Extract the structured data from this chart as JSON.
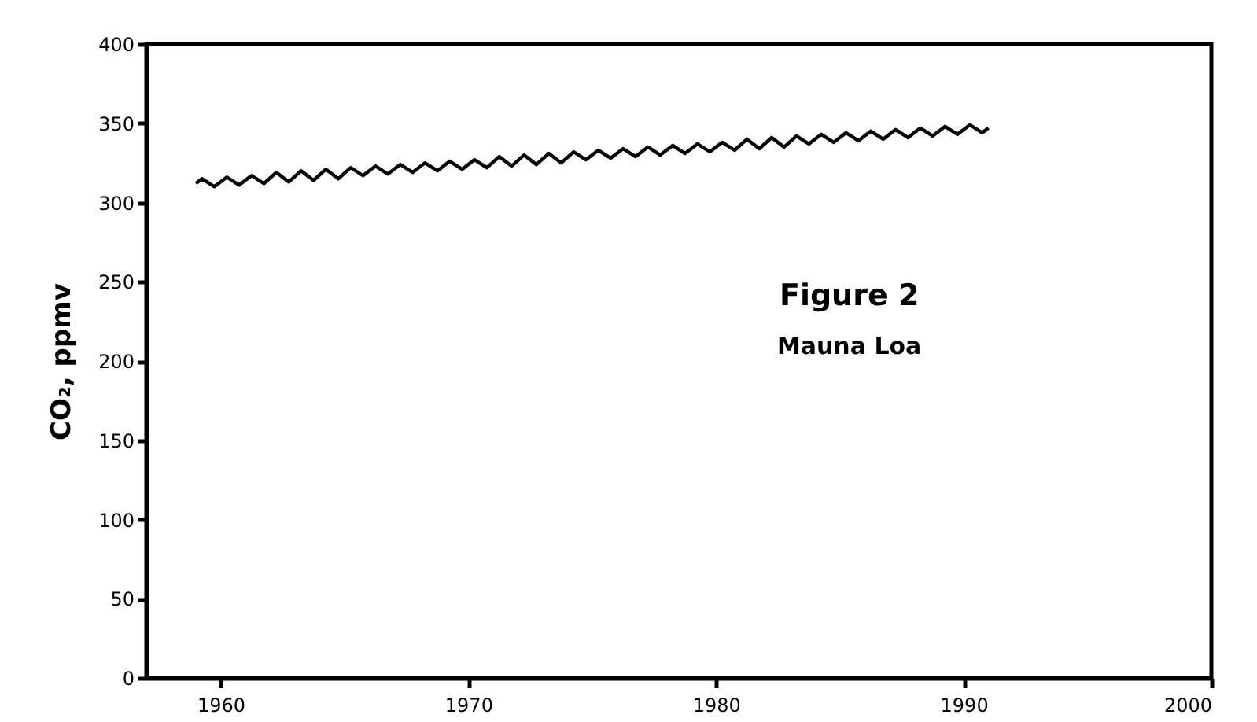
{
  "chart_data": {
    "type": "line",
    "annotations": [
      "Figure 2",
      "Mauna Loa"
    ],
    "ylabel": "CO₂, ppmv",
    "x": [
      1959.0,
      1959.25,
      1959.75,
      1960.25,
      1960.75,
      1961.25,
      1961.75,
      1962.25,
      1962.75,
      1963.25,
      1963.75,
      1964.25,
      1964.75,
      1965.25,
      1965.75,
      1966.25,
      1966.75,
      1967.25,
      1967.75,
      1968.25,
      1968.75,
      1969.25,
      1969.75,
      1970.25,
      1970.75,
      1971.25,
      1971.75,
      1972.25,
      1972.75,
      1973.25,
      1973.75,
      1974.25,
      1974.75,
      1975.25,
      1975.75,
      1976.25,
      1976.75,
      1977.25,
      1977.75,
      1978.25,
      1978.75,
      1979.25,
      1979.75,
      1980.25,
      1980.75,
      1981.25,
      1981.75,
      1982.25,
      1982.75,
      1983.25,
      1983.75,
      1984.25,
      1984.75,
      1985.25,
      1985.75,
      1986.25,
      1986.75,
      1987.25,
      1987.75,
      1988.25,
      1988.75,
      1989.25,
      1989.75,
      1990.25,
      1990.75,
      1991.0
    ],
    "series": [
      {
        "color": "#000000",
        "values": [
          312,
          315,
          310,
          316,
          311,
          317,
          312,
          319,
          313,
          320,
          314,
          321,
          315,
          322,
          317,
          323,
          318,
          324,
          319,
          325,
          320,
          326,
          321,
          327,
          322,
          329,
          323,
          330,
          324,
          331,
          325,
          332,
          327,
          333,
          328,
          334,
          329,
          335,
          330,
          336,
          331,
          337,
          332,
          338,
          333,
          340,
          334,
          341,
          335,
          342,
          337,
          343,
          338,
          344,
          339,
          345,
          340,
          346,
          341,
          347,
          342,
          348,
          343,
          349,
          344,
          347
        ]
      }
    ],
    "xlim": [
      1957,
      2000
    ],
    "xticks": [
      1960,
      1970,
      1980,
      1990,
      2000
    ],
    "ylim": [
      0,
      400
    ],
    "yticks": [
      0,
      50,
      100,
      150,
      200,
      250,
      300,
      350,
      400
    ],
    "grid": false,
    "marker": "none",
    "line_style": "solid"
  }
}
